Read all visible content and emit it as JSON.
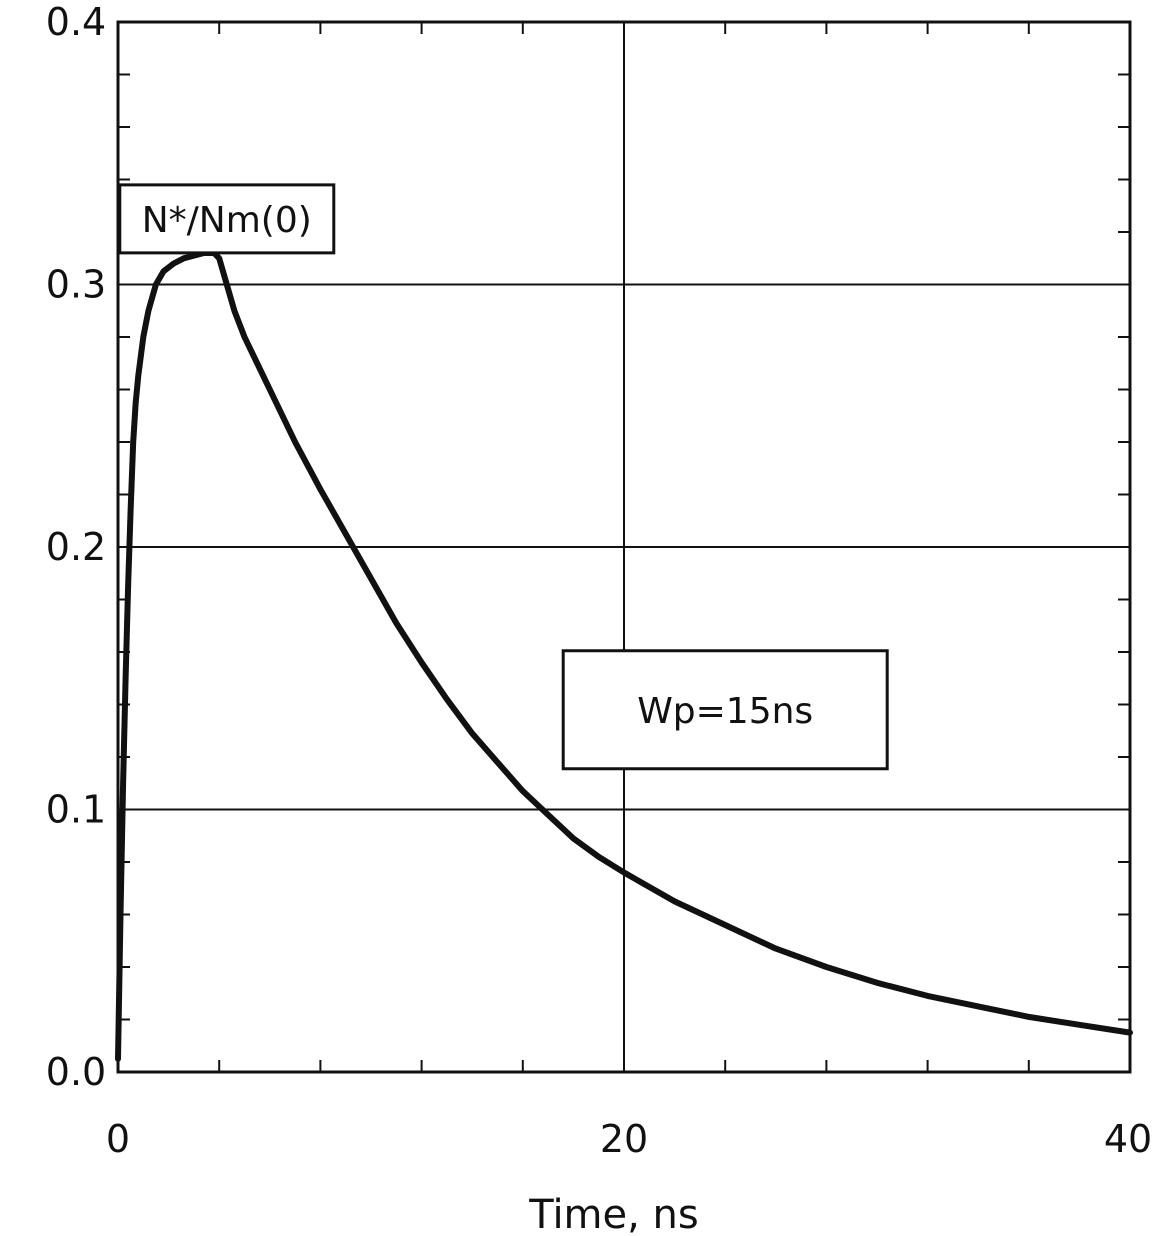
{
  "chart_data": {
    "type": "line",
    "title": "",
    "xlabel": "Time, ns",
    "ylabel": "",
    "xlim": [
      0,
      40
    ],
    "ylim": [
      0.0,
      0.4
    ],
    "x_ticks": [
      0,
      20,
      40
    ],
    "x_tick_labels": [
      "0",
      "20",
      "40"
    ],
    "y_ticks": [
      0.0,
      0.1,
      0.2,
      0.3,
      0.4
    ],
    "y_tick_labels": [
      "0.0",
      "0.1",
      "0.2",
      "0.3",
      "0.4"
    ],
    "x_minor_step": 4,
    "y_minor_step": 0.02,
    "grid": true,
    "legend": "none",
    "line_color": "#111111",
    "annotations": [
      {
        "text": "N*/Nm(0)",
        "x": 4.3,
        "y": 0.325
      },
      {
        "text": "Wp=15ns",
        "x": 24.0,
        "y": 0.138
      }
    ],
    "series": [
      {
        "x": [
          0,
          0.1,
          0.2,
          0.3,
          0.4,
          0.5,
          0.6,
          0.7,
          0.8,
          1.0,
          1.2,
          1.5,
          1.8,
          2.2,
          2.6,
          3.0,
          3.4,
          3.8,
          4.0,
          4.3,
          4.6,
          5.0,
          6.0,
          7.0,
          8.0,
          9.0,
          10.0,
          11.0,
          12.0,
          13.0,
          14.0,
          15.0,
          16.0,
          17.0,
          18.0,
          19.0,
          20.0,
          22.0,
          24.0,
          26.0,
          28.0,
          30.0,
          32.0,
          34.0,
          36.0,
          38.0,
          40.0
        ],
        "y": [
          0.005,
          0.06,
          0.11,
          0.15,
          0.185,
          0.215,
          0.24,
          0.255,
          0.265,
          0.28,
          0.29,
          0.3,
          0.305,
          0.308,
          0.31,
          0.311,
          0.312,
          0.312,
          0.31,
          0.3,
          0.29,
          0.28,
          0.26,
          0.24,
          0.222,
          0.205,
          0.188,
          0.171,
          0.156,
          0.142,
          0.129,
          0.118,
          0.107,
          0.098,
          0.089,
          0.082,
          0.076,
          0.065,
          0.056,
          0.047,
          0.04,
          0.034,
          0.029,
          0.025,
          0.021,
          0.018,
          0.015
        ]
      }
    ]
  }
}
